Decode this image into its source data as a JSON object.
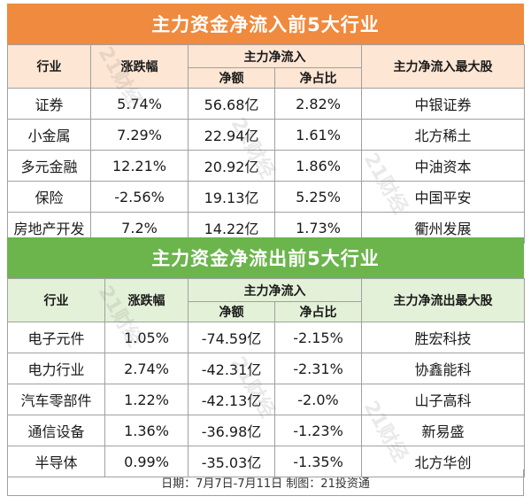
{
  "inflow": {
    "title": "主力资金净流入前5大行业",
    "headers": {
      "industry": "行业",
      "change": "涨跌幅",
      "group": "主力净流入",
      "net": "净额",
      "ratio": "净占比",
      "top_stock": "主力净流入最大股"
    },
    "rows": [
      {
        "industry": "证券",
        "change": "5.74%",
        "net": "56.68亿",
        "ratio": "2.82%",
        "stock": "中银证券"
      },
      {
        "industry": "小金属",
        "change": "7.29%",
        "net": "22.94亿",
        "ratio": "1.61%",
        "stock": "北方稀土"
      },
      {
        "industry": "多元金融",
        "change": "12.21%",
        "net": "20.92亿",
        "ratio": "1.86%",
        "stock": "中油资本"
      },
      {
        "industry": "保险",
        "change": "-2.56%",
        "net": "19.13亿",
        "ratio": "5.25%",
        "stock": "中国平安"
      },
      {
        "industry": "房地产开发",
        "change": "7.2%",
        "net": "14.22亿",
        "ratio": "1.73%",
        "stock": "衢州发展"
      }
    ]
  },
  "outflow": {
    "title": "主力资金净流出前5大行业",
    "headers": {
      "industry": "行业",
      "change": "涨跌幅",
      "group": "主力净流入",
      "net": "净额",
      "ratio": "净占比",
      "top_stock": "主力净流出最大股"
    },
    "rows": [
      {
        "industry": "电子元件",
        "change": "1.05%",
        "net": "-74.59亿",
        "ratio": "-2.15%",
        "stock": "胜宏科技"
      },
      {
        "industry": "电力行业",
        "change": "2.74%",
        "net": "-42.31亿",
        "ratio": "-2.31%",
        "stock": "协鑫能科"
      },
      {
        "industry": "汽车零部件",
        "change": "1.22%",
        "net": "-42.13亿",
        "ratio": "-2.0%",
        "stock": "山子高科"
      },
      {
        "industry": "通信设备",
        "change": "1.36%",
        "net": "-36.98亿",
        "ratio": "-1.23%",
        "stock": "新易盛"
      },
      {
        "industry": "半导体",
        "change": "0.99%",
        "net": "-35.03亿",
        "ratio": "-1.35%",
        "stock": "北方华创"
      }
    ]
  },
  "footer": "日期：7月7日-7月11日 制图：21投资通",
  "watermark": "21财经",
  "colors": {
    "inflow_banner": "#ef8a3e",
    "inflow_header": "#fde6d4",
    "outflow_banner": "#6bb54c",
    "outflow_header": "#e3f1d8"
  }
}
